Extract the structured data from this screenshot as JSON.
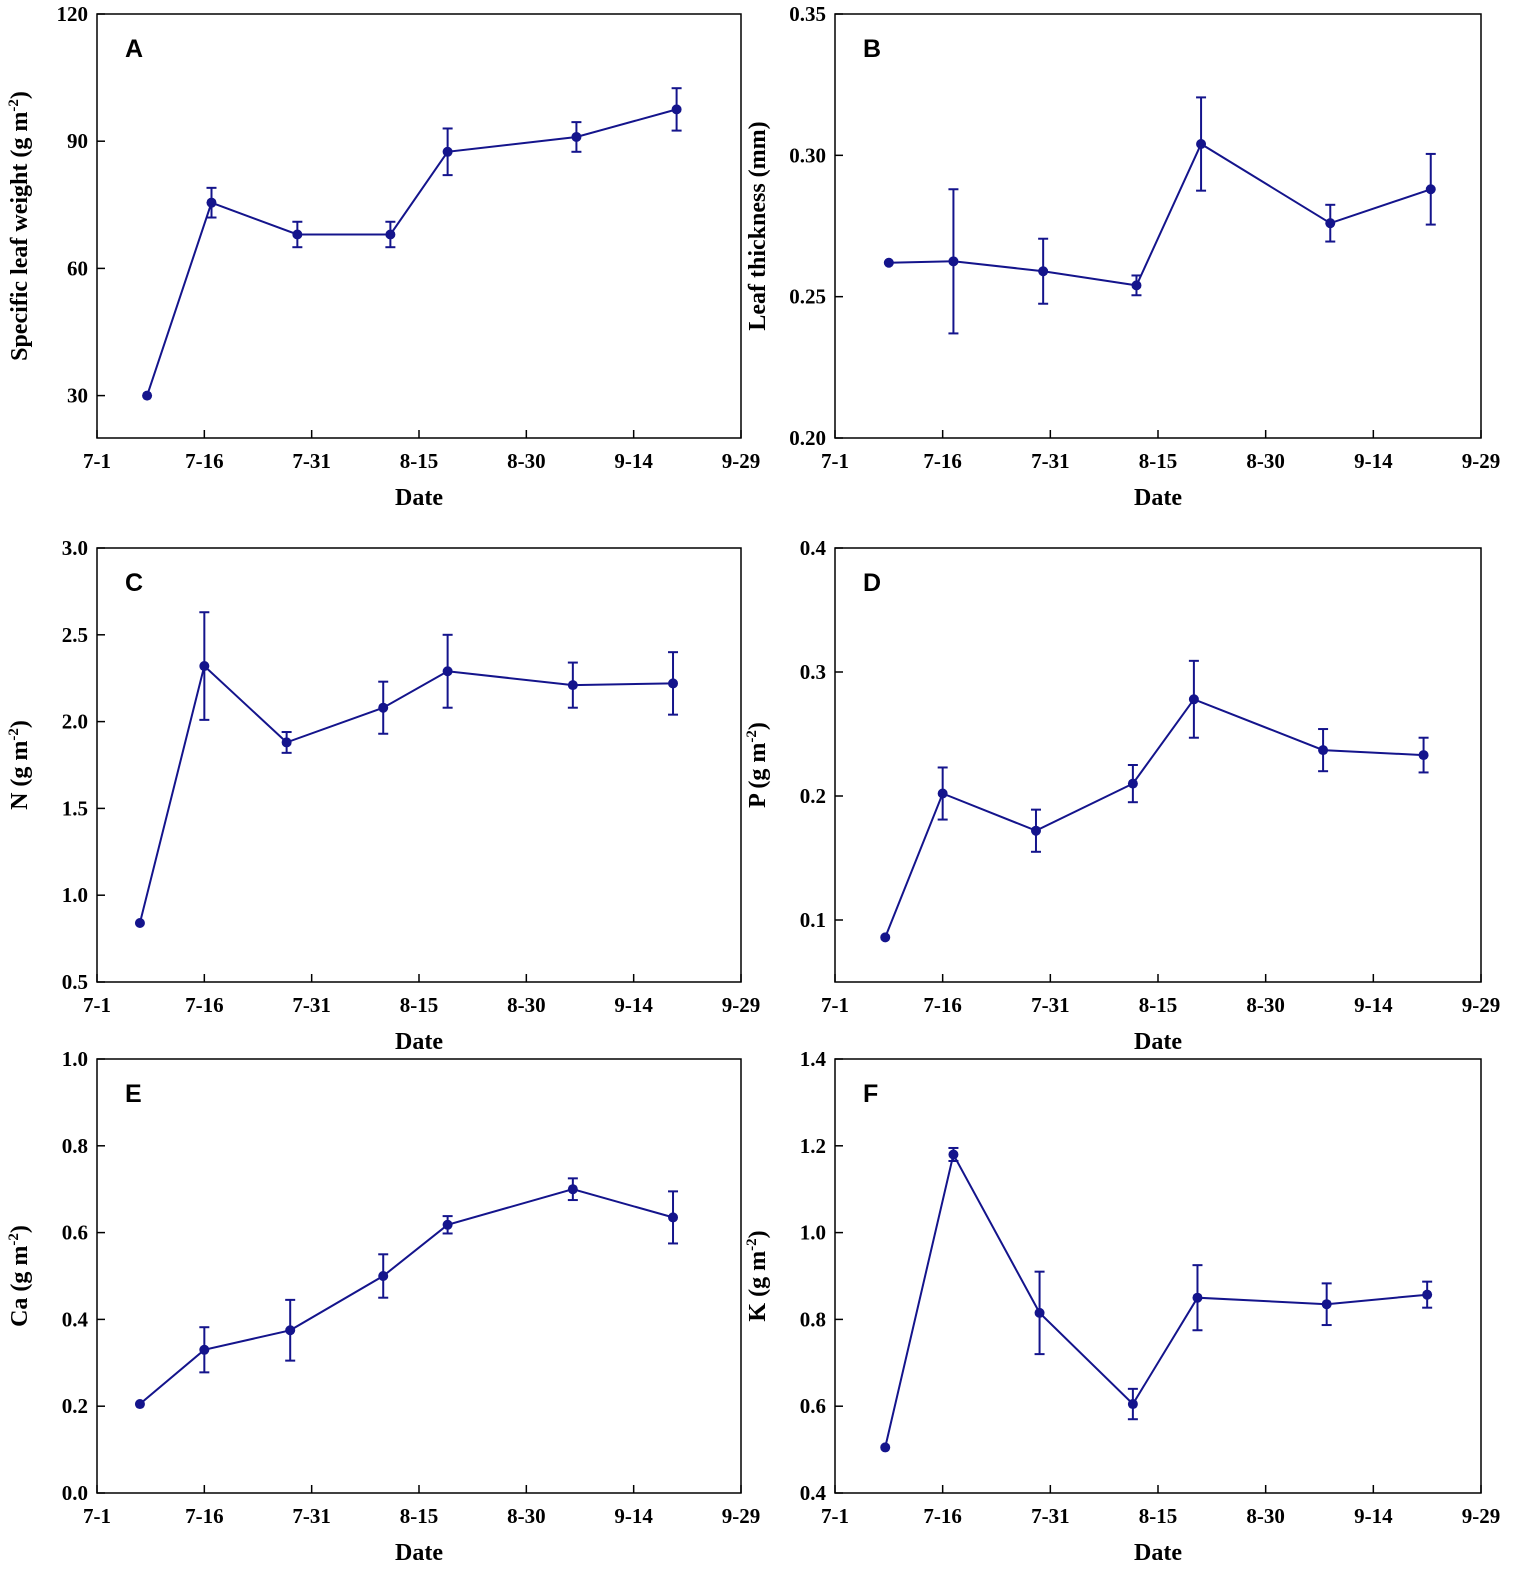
{
  "series_color": "#14148c",
  "chart_data": [
    {
      "panel": "A",
      "type": "line",
      "xlabel": "Date",
      "ylabel_main": "Specific leaf weight (g m",
      "ylabel_sup": "-2",
      "ylabel_end": ")",
      "ylim": [
        20,
        120
      ],
      "yticks": [
        30,
        60,
        90,
        120
      ],
      "ytick_labels": [
        "30",
        "60",
        "90",
        "120"
      ],
      "xticks": [
        0,
        15,
        30,
        45,
        60,
        75,
        90
      ],
      "xtick_labels": [
        "7-1",
        "7-16",
        "7-31",
        "8-15",
        "8-30",
        "9-14",
        "9-29"
      ],
      "xlim": [
        0,
        90
      ],
      "x": [
        7,
        16,
        28,
        41,
        49,
        67,
        81
      ],
      "values": [
        30,
        75.5,
        68,
        68,
        87.5,
        91,
        97.5
      ],
      "errors": [
        0,
        3.5,
        3,
        3,
        5.5,
        3.5,
        5
      ]
    },
    {
      "panel": "B",
      "type": "line",
      "xlabel": "Date",
      "ylabel_main": "Leaf thickness (mm)",
      "ylabel_sup": "",
      "ylabel_end": "",
      "ylim": [
        0.2,
        0.35
      ],
      "yticks": [
        0.2,
        0.25,
        0.3,
        0.35
      ],
      "ytick_labels": [
        "0.20",
        "0.25",
        "0.30",
        "0.35"
      ],
      "xticks": [
        0,
        15,
        30,
        45,
        60,
        75,
        90
      ],
      "xtick_labels": [
        "7-1",
        "7-16",
        "7-31",
        "8-15",
        "8-30",
        "9-14",
        "9-29"
      ],
      "xlim": [
        0,
        90
      ],
      "x": [
        7.5,
        16.5,
        29,
        42,
        51,
        69,
        83
      ],
      "values": [
        0.262,
        0.2625,
        0.259,
        0.254,
        0.304,
        0.276,
        0.288
      ],
      "errors": [
        0,
        0.0255,
        0.0115,
        0.0035,
        0.0165,
        0.0065,
        0.0125
      ]
    },
    {
      "panel": "C",
      "type": "line",
      "xlabel": "Date",
      "ylabel_main": "N (g m",
      "ylabel_sup": "-2",
      "ylabel_end": ")",
      "ylim": [
        0.5,
        3.0
      ],
      "yticks": [
        0.5,
        1.0,
        1.5,
        2.0,
        2.5,
        3.0
      ],
      "ytick_labels": [
        "0.5",
        "1.0",
        "1.5",
        "2.0",
        "2.5",
        "3.0"
      ],
      "xticks": [
        0,
        15,
        30,
        45,
        60,
        75,
        90
      ],
      "xtick_labels": [
        "7-1",
        "7-16",
        "7-31",
        "8-15",
        "8-30",
        "9-14",
        "9-29"
      ],
      "xlim": [
        0,
        90
      ],
      "x": [
        6,
        15,
        26.5,
        40,
        49,
        66.5,
        80.5
      ],
      "values": [
        0.84,
        2.32,
        1.88,
        2.08,
        2.29,
        2.21,
        2.22
      ],
      "errors": [
        0,
        0.31,
        0.06,
        0.15,
        0.21,
        0.13,
        0.18
      ]
    },
    {
      "panel": "D",
      "type": "line",
      "xlabel": "Date",
      "ylabel_main": "P (g m",
      "ylabel_sup": "-2",
      "ylabel_end": ")",
      "ylim": [
        0.05,
        0.4
      ],
      "yticks": [
        0.1,
        0.2,
        0.3,
        0.4
      ],
      "ytick_labels": [
        "0.1",
        "0.2",
        "0.3",
        "0.4"
      ],
      "xticks": [
        0,
        15,
        30,
        45,
        60,
        75,
        90
      ],
      "xtick_labels": [
        "7-1",
        "7-16",
        "7-31",
        "8-15",
        "8-30",
        "9-14",
        "9-29"
      ],
      "xlim": [
        0,
        90
      ],
      "x": [
        7,
        15,
        28,
        41.5,
        50,
        68,
        82
      ],
      "values": [
        0.086,
        0.202,
        0.172,
        0.21,
        0.278,
        0.237,
        0.233
      ],
      "errors": [
        0,
        0.021,
        0.017,
        0.015,
        0.031,
        0.017,
        0.014
      ]
    },
    {
      "panel": "E",
      "type": "line",
      "xlabel": "Date",
      "ylabel_main": "Ca (g m",
      "ylabel_sup": "-2",
      "ylabel_end": ")",
      "ylim": [
        0.0,
        1.0
      ],
      "yticks": [
        0.0,
        0.2,
        0.4,
        0.6,
        0.8,
        1.0
      ],
      "ytick_labels": [
        "0.0",
        "0.2",
        "0.4",
        "0.6",
        "0.8",
        "1.0"
      ],
      "xticks": [
        0,
        15,
        30,
        45,
        60,
        75,
        90
      ],
      "xtick_labels": [
        "7-1",
        "7-16",
        "7-31",
        "8-15",
        "8-30",
        "9-14",
        "9-29"
      ],
      "xlim": [
        0,
        90
      ],
      "x": [
        6,
        15,
        27,
        40,
        49,
        66.5,
        80.5
      ],
      "values": [
        0.205,
        0.33,
        0.375,
        0.5,
        0.618,
        0.7,
        0.635
      ],
      "errors": [
        0,
        0.052,
        0.07,
        0.05,
        0.02,
        0.025,
        0.06
      ]
    },
    {
      "panel": "F",
      "type": "line",
      "xlabel": "Date",
      "ylabel_main": "K (g m",
      "ylabel_sup": "-2",
      "ylabel_end": ")",
      "ylim": [
        0.4,
        1.4
      ],
      "yticks": [
        0.4,
        0.6,
        0.8,
        1.0,
        1.2,
        1.4
      ],
      "ytick_labels": [
        "0.4",
        "0.6",
        "0.8",
        "1.0",
        "1.2",
        "1.4"
      ],
      "xticks": [
        0,
        15,
        30,
        45,
        60,
        75,
        90
      ],
      "xtick_labels": [
        "7-1",
        "7-16",
        "7-31",
        "8-15",
        "8-30",
        "9-14",
        "9-29"
      ],
      "xlim": [
        0,
        90
      ],
      "x": [
        7,
        16.5,
        28.5,
        41.5,
        50.5,
        68.5,
        82.5
      ],
      "values": [
        0.505,
        1.18,
        0.815,
        0.605,
        0.85,
        0.835,
        0.857
      ],
      "errors": [
        0,
        0.015,
        0.095,
        0.035,
        0.075,
        0.048,
        0.03
      ]
    }
  ]
}
